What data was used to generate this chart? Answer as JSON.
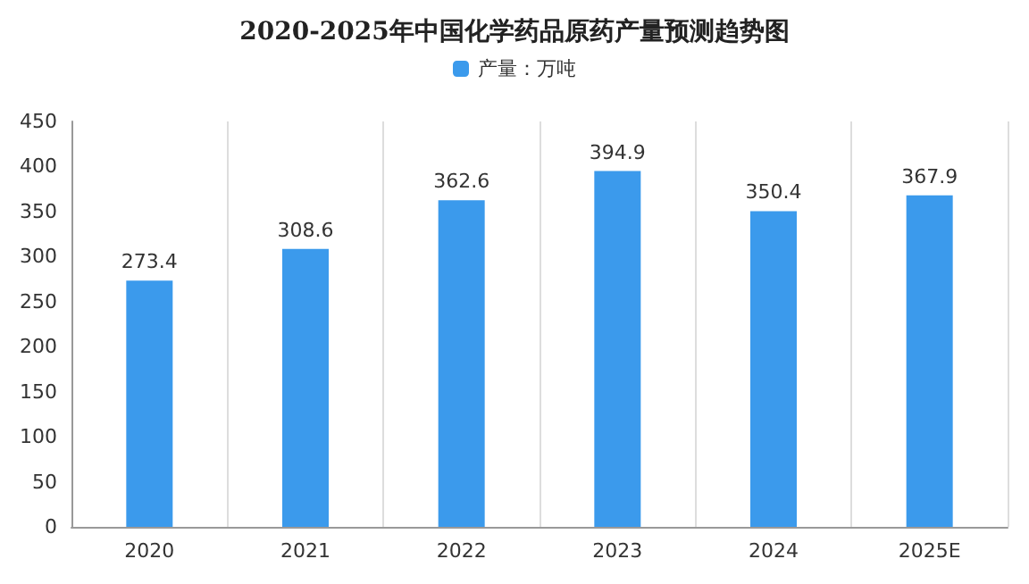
{
  "chart_data": {
    "type": "bar",
    "title": "2020-2025年中国化学药品原药产量预测趋势图",
    "categories": [
      "2020",
      "2021",
      "2022",
      "2023",
      "2024",
      "2025E"
    ],
    "series": [
      {
        "name": "产量：万吨",
        "color": "#3b9aec",
        "values": [
          273.4,
          308.6,
          362.6,
          394.9,
          350.4,
          367.9
        ]
      }
    ],
    "ylim": [
      0,
      450
    ],
    "yticks": [
      0,
      50,
      100,
      150,
      200,
      250,
      300,
      350,
      400,
      450
    ],
    "grid": "x",
    "legend": "top",
    "data_labels": true
  }
}
